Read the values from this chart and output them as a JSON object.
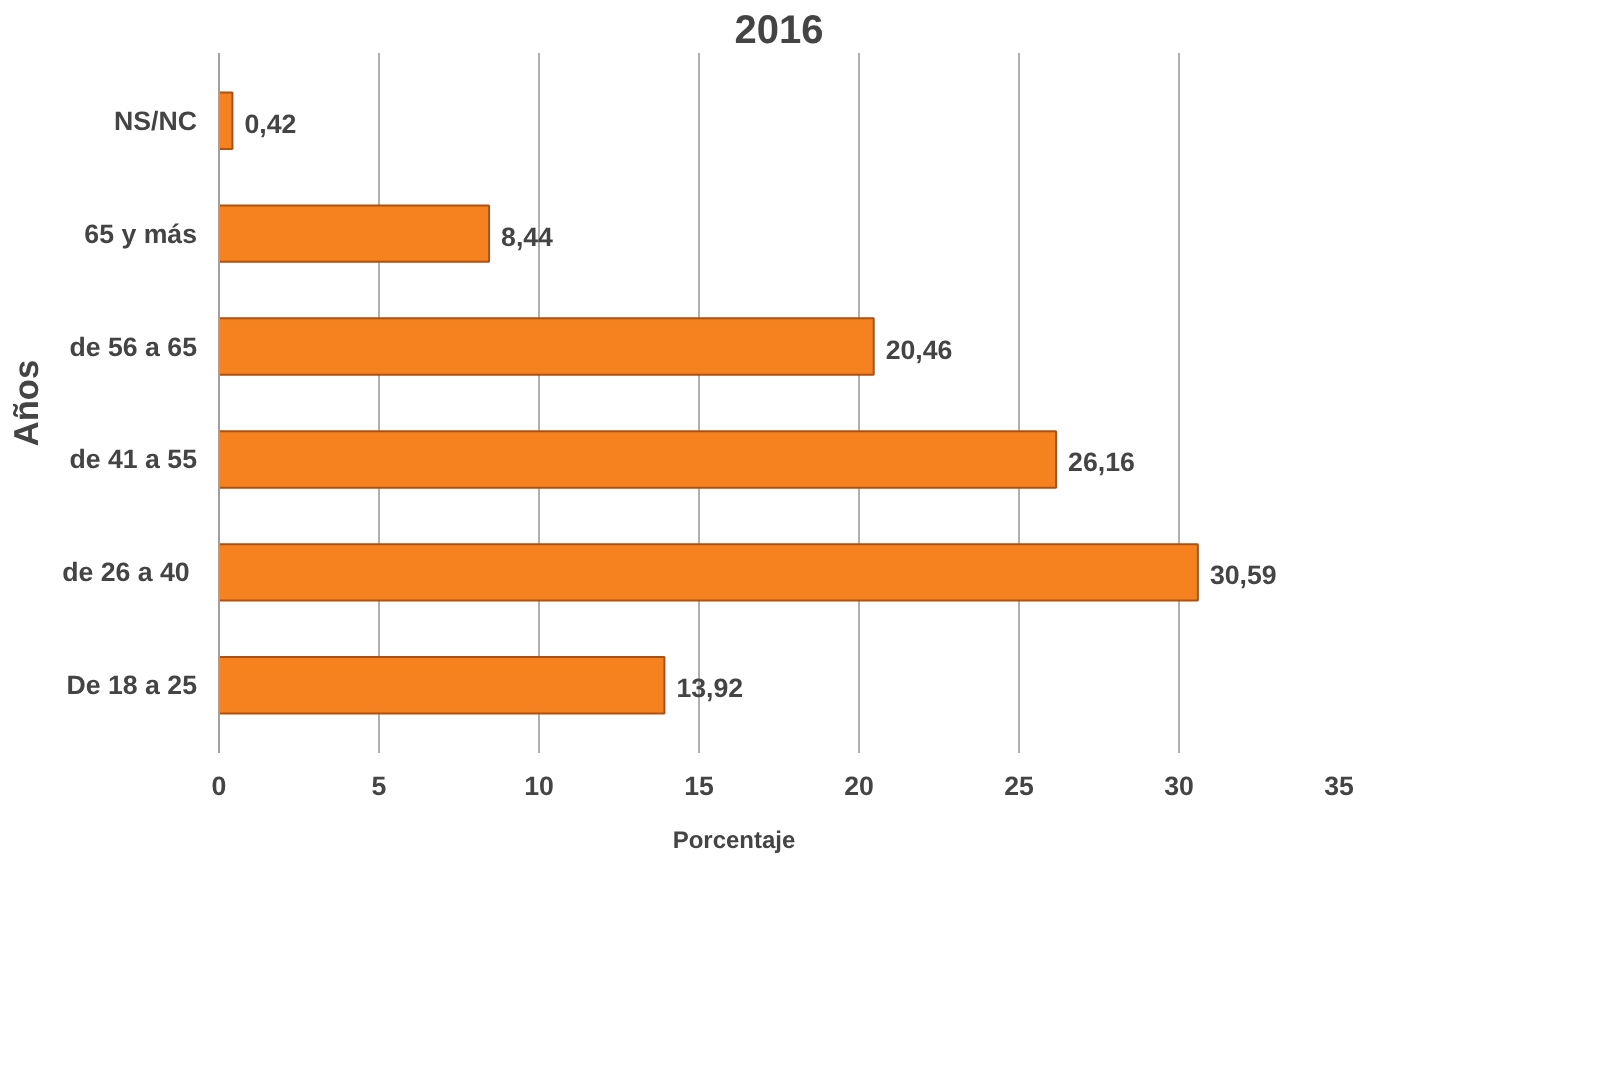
{
  "chart_data": {
    "type": "bar",
    "orientation": "horizontal",
    "title": "2016",
    "ylabel": "Años",
    "categories": [
      "NS/NC",
      "65 y más",
      "de 56 a 65",
      "de 41 a 55",
      "de 26  a 40",
      "De 18 a 25"
    ],
    "series": [
      {
        "name": "Porcentaje",
        "color": "#f5821f",
        "values": [
          0.42,
          8.44,
          20.46,
          26.16,
          30.59,
          13.92
        ],
        "value_labels": [
          "0,42",
          "8,44",
          "20,46",
          "26,16",
          "30,59",
          "13,92"
        ]
      }
    ],
    "xlim": [
      0,
      35
    ],
    "xticks": [
      0,
      5,
      10,
      15,
      20,
      25,
      30,
      35
    ],
    "grid": "x",
    "legend": "bottom"
  }
}
